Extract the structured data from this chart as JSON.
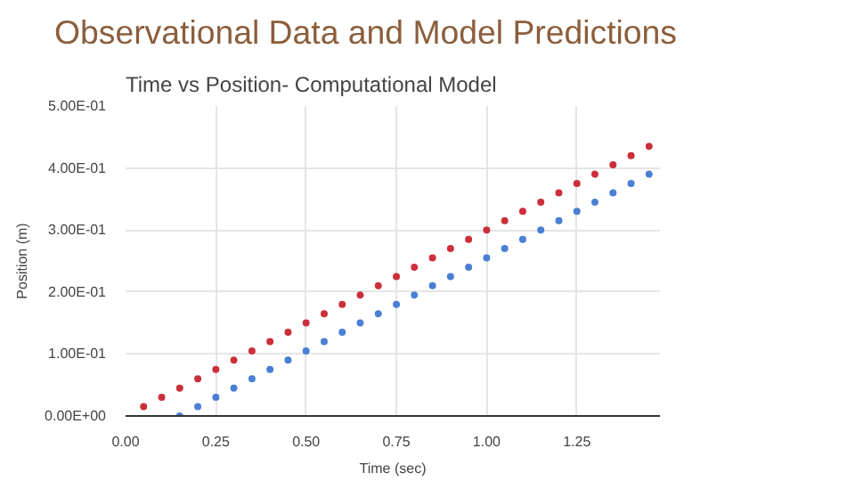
{
  "chart_data": {
    "type": "scatter",
    "title": "Observational Data and Model Predictions",
    "subtitle": "Time vs Position- Computational Model",
    "xlabel": "Time (sec)",
    "ylabel": "Position (m)",
    "xlim": [
      0,
      1.48
    ],
    "ylim": [
      0,
      0.5
    ],
    "xticks": [
      {
        "value": 0,
        "label": "0.00"
      },
      {
        "value": 0.25,
        "label": "0.25"
      },
      {
        "value": 0.5,
        "label": "0.50"
      },
      {
        "value": 0.75,
        "label": "0.75"
      },
      {
        "value": 1,
        "label": "1.00"
      },
      {
        "value": 1.25,
        "label": "1.25"
      }
    ],
    "yticks": [
      {
        "value": 0,
        "label": "0.00E+00"
      },
      {
        "value": 0.1,
        "label": "1.00E-01"
      },
      {
        "value": 0.2,
        "label": "2.00E-01"
      },
      {
        "value": 0.3,
        "label": "3.00E-01"
      },
      {
        "value": 0.4,
        "label": "4.00E-01"
      },
      {
        "value": 0.5,
        "label": "5.00E-01"
      }
    ],
    "grid": true,
    "marker": "circle",
    "series": [
      {
        "color": "#4a7fd4",
        "x": [
          0.15,
          0.2,
          0.25,
          0.3,
          0.35,
          0.4,
          0.45,
          0.5,
          0.55,
          0.6,
          0.65,
          0.7,
          0.75,
          0.8,
          0.85,
          0.9,
          0.95,
          1.0,
          1.05,
          1.1,
          1.15,
          1.2,
          1.25,
          1.3,
          1.35,
          1.4,
          1.45
        ],
        "values": [
          0.0,
          0.015,
          0.03,
          0.045,
          0.06,
          0.075,
          0.09,
          0.105,
          0.12,
          0.135,
          0.15,
          0.165,
          0.18,
          0.195,
          0.21,
          0.225,
          0.24,
          0.255,
          0.27,
          0.285,
          0.3,
          0.315,
          0.33,
          0.345,
          0.36,
          0.375,
          0.39
        ]
      },
      {
        "color": "#cc2f3c",
        "x": [
          0.05,
          0.1,
          0.15,
          0.2,
          0.25,
          0.3,
          0.35,
          0.4,
          0.45,
          0.5,
          0.55,
          0.6,
          0.65,
          0.7,
          0.75,
          0.8,
          0.85,
          0.9,
          0.95,
          1.0,
          1.05,
          1.1,
          1.15,
          1.2,
          1.25,
          1.3,
          1.35,
          1.4,
          1.45
        ],
        "values": [
          0.015,
          0.03,
          0.045,
          0.06,
          0.075,
          0.09,
          0.105,
          0.12,
          0.135,
          0.15,
          0.165,
          0.18,
          0.195,
          0.21,
          0.225,
          0.24,
          0.255,
          0.27,
          0.285,
          0.3,
          0.315,
          0.33,
          0.345,
          0.36,
          0.375,
          0.39,
          0.405,
          0.42,
          0.435
        ]
      }
    ]
  }
}
